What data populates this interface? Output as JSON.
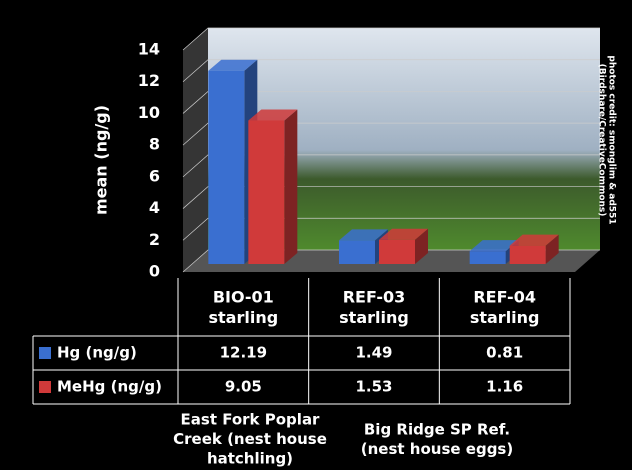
{
  "chart_data": {
    "type": "bar3d",
    "y_label": "mean (ng/g)",
    "categories": [
      "BIO-01 starling",
      "REF-03 starling",
      "REF-04 starling"
    ],
    "series": [
      {
        "name": "Hg (ng/g)",
        "color": "#3a6fd0",
        "values": [
          12.19,
          1.49,
          0.81
        ]
      },
      {
        "name": "MeHg (ng/g)",
        "color": "#d03a3a",
        "values": [
          9.05,
          1.53,
          1.16
        ]
      }
    ],
    "ylim": [
      0,
      14
    ],
    "yticks": [
      0,
      2,
      4,
      6,
      8,
      10,
      12,
      14
    ],
    "grid": true,
    "annotations": [
      "East Fork Poplar Creek (nest house hatchling)",
      "Big Ridge SP Ref. (nest house eggs)"
    ],
    "credit": [
      "photos credit: smonglim & ad551",
      "(Birdshare/CreativeCommons)"
    ]
  }
}
